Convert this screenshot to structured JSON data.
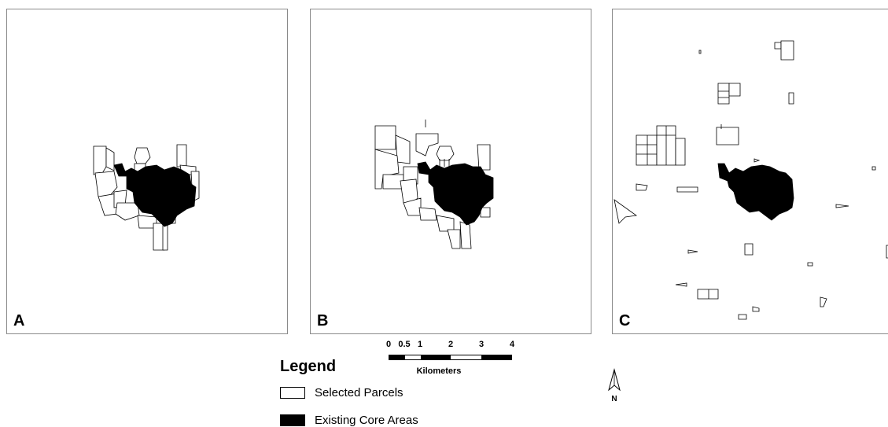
{
  "panels": [
    {
      "label": "A"
    },
    {
      "label": "B"
    },
    {
      "label": "C"
    }
  ],
  "legend": {
    "title": "Legend",
    "items": [
      {
        "label": "Selected Parcels",
        "symbol": "white-box"
      },
      {
        "label": "Existing Core Areas",
        "symbol": "black-box"
      }
    ]
  },
  "scale_bar": {
    "ticks": [
      "0",
      "0.5",
      "1",
      "2",
      "3",
      "4"
    ],
    "unit": "Kilometers"
  },
  "north_arrow": {
    "label": "N"
  },
  "colors": {
    "core_fill": "#000000",
    "parcel_fill": "#ffffff",
    "outline": "#000000"
  }
}
